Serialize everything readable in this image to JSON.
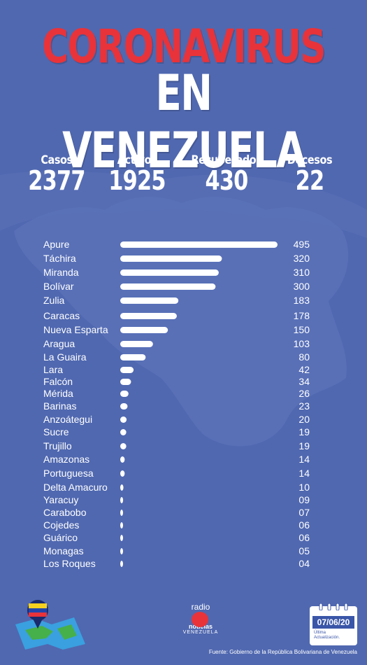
{
  "header": {
    "title_line1": "CORONAVIRUS",
    "title_line2": "EN VENEZUELA"
  },
  "stats": [
    {
      "label": "Casos",
      "value": "2377"
    },
    {
      "label": "Activos",
      "value": "1925"
    },
    {
      "label": "Recuperados",
      "value": "430"
    },
    {
      "label": "Decesos",
      "value": "22"
    }
  ],
  "chart_data": {
    "type": "bar",
    "orientation": "horizontal",
    "categories": [
      "Apure",
      "Táchira",
      "Miranda",
      "Bolívar",
      "Zulia",
      "Caracas",
      "Nueva Esparta",
      "Aragua",
      "La Guaira",
      "Lara",
      "Falcón",
      "Mérida",
      "Barinas",
      "Anzoátegui",
      "Sucre",
      "Trujillo",
      "Amazonas",
      "Portuguesa",
      "Delta Amacuro",
      "Yaracuy",
      "Carabobo",
      "Cojedes",
      "Guárico",
      "Monagas",
      "Los Roques"
    ],
    "values": [
      495,
      320,
      310,
      300,
      183,
      178,
      150,
      103,
      80,
      42,
      34,
      26,
      23,
      20,
      19,
      19,
      14,
      14,
      10,
      9,
      7,
      6,
      6,
      5,
      4
    ],
    "value_labels": [
      "495",
      "320",
      "310",
      "300",
      "183",
      "178",
      "150",
      "103",
      "80",
      "42",
      "34",
      "26",
      "23",
      "20",
      "19",
      "19",
      "14",
      "14",
      "10",
      "09",
      "07",
      "06",
      "06",
      "05",
      "04"
    ],
    "bar_color": "#ffffff",
    "text_color": "#ffffff"
  },
  "footer": {
    "radio_top": "radio",
    "radio_name": "noticias",
    "radio_country": "VENEZUELA",
    "date": "07/06/20",
    "date_caption_1": "Última",
    "date_caption_2": "Actualización.",
    "source": "Fuente: Gobierno de la República Bolivariana de Venezuela"
  },
  "colors": {
    "background": "#5068b0",
    "map": "#6078bc",
    "title_red": "#e8333a"
  },
  "icons": [
    "venezuela-map-pin-icon",
    "radio-logo-icon",
    "calendar-icon"
  ]
}
